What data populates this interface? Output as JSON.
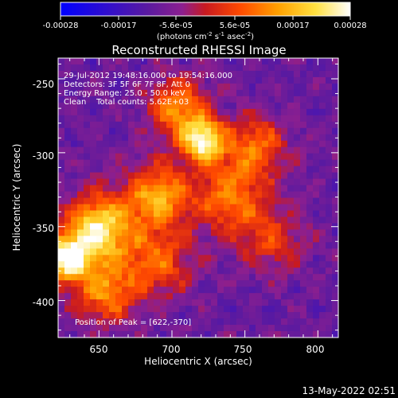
{
  "chart_data": {
    "type": "heatmap",
    "title": "Reconstructed RHESSI Image",
    "xlabel": "Heliocentric X (arcsec)",
    "ylabel": "Heliocentric Y (arcsec)",
    "xlim": [
      622,
      814
    ],
    "ylim": [
      -425,
      -236
    ],
    "x_ticks": [
      650,
      700,
      750,
      800
    ],
    "y_ticks": [
      -250,
      -300,
      -350,
      -400
    ],
    "colorbar": {
      "ticks": [
        "-0.00028",
        "-0.00017",
        "-5.6e-05",
        "5.6e-05",
        "0.00017",
        "0.00028"
      ],
      "range": [
        -0.00028,
        0.00028
      ],
      "unit_prefix": "(photons cm",
      "unit_sup1": "-2",
      "unit_mid": " s",
      "unit_sup2": "-1",
      "unit_tail": " asec",
      "unit_sup3": "-2",
      "unit_end": ")",
      "colors": [
        "#0000ff",
        "#5a1aa0",
        "#8c1f8f",
        "#c81a20",
        "#ff4a00",
        "#ffa000",
        "#ffe040",
        "#ffffff"
      ]
    },
    "annotations": {
      "time": "29-Jul-2012 19:48:16.000 to 19:54:16.000",
      "detectors": "Detectors: 3F 5F 6F 7F 8F, Att 0",
      "energy": "Energy Range: 25.0 - 50.0 keV",
      "clean": "Clean    Total counts: 5.62E+03",
      "peak": "Position of Peak = [622,-370]"
    },
    "peak": {
      "x": 622,
      "y": -370
    },
    "sources": [
      {
        "x": 722,
        "y": -292,
        "amp": 1.0,
        "sigma": 10
      },
      {
        "x": 650,
        "y": -352,
        "amp": 0.95,
        "sigma": 16
      },
      {
        "x": 628,
        "y": -372,
        "amp": 1.0,
        "sigma": 11
      },
      {
        "x": 690,
        "y": -330,
        "amp": 0.7,
        "sigma": 15
      },
      {
        "x": 705,
        "y": -270,
        "amp": 0.65,
        "sigma": 14
      },
      {
        "x": 740,
        "y": -330,
        "amp": 0.55,
        "sigma": 18
      },
      {
        "x": 758,
        "y": -295,
        "amp": 0.5,
        "sigma": 14
      },
      {
        "x": 655,
        "y": -395,
        "amp": 0.6,
        "sigma": 14
      },
      {
        "x": 690,
        "y": -375,
        "amp": 0.5,
        "sigma": 16
      },
      {
        "x": 770,
        "y": -360,
        "amp": 0.35,
        "sigma": 15
      }
    ]
  },
  "footer": {
    "date": "13-May-2022 02:51"
  }
}
